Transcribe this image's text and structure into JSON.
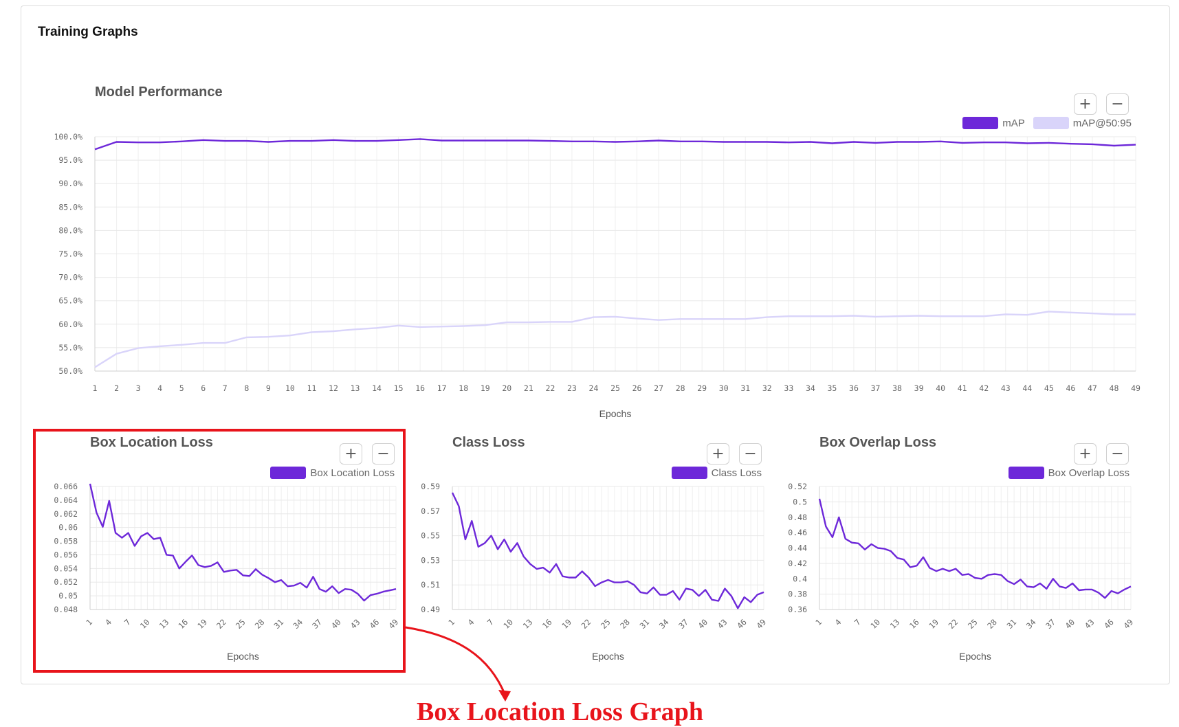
{
  "card": {
    "title": "Training Graphs"
  },
  "zoom": {
    "in_label": "+",
    "out_label": "−"
  },
  "annotation": {
    "label": "Box Location Loss Graph",
    "color": "#e8141b"
  },
  "colors": {
    "primary": "#6d28d9",
    "secondary": "#d9d4fa"
  },
  "chart_data": [
    {
      "id": "perf",
      "type": "line",
      "title": "Model Performance",
      "xlabel": "Epochs",
      "ylabel": "",
      "x": [
        1,
        2,
        3,
        4,
        5,
        6,
        7,
        8,
        9,
        10,
        11,
        12,
        13,
        14,
        15,
        16,
        17,
        18,
        19,
        20,
        21,
        22,
        23,
        24,
        25,
        26,
        27,
        28,
        29,
        30,
        31,
        32,
        33,
        34,
        35,
        36,
        37,
        38,
        39,
        40,
        41,
        42,
        43,
        44,
        45,
        46,
        47,
        48,
        49
      ],
      "ylim": [
        50,
        100
      ],
      "yticks": [
        "100.0%",
        "95.0%",
        "90.0%",
        "85.0%",
        "80.0%",
        "75.0%",
        "70.0%",
        "65.0%",
        "60.0%",
        "55.0%",
        "50.0%"
      ],
      "legend": "top-right",
      "grid": true,
      "series": [
        {
          "name": "mAP",
          "color": "#6d28d9",
          "values": [
            97.3,
            98.9,
            98.8,
            98.8,
            99.0,
            99.3,
            99.1,
            99.1,
            98.9,
            99.1,
            99.1,
            99.3,
            99.1,
            99.1,
            99.3,
            99.5,
            99.2,
            99.2,
            99.2,
            99.2,
            99.2,
            99.1,
            99.0,
            99.0,
            98.9,
            99.0,
            99.2,
            99.0,
            99.0,
            98.9,
            98.9,
            98.9,
            98.8,
            98.9,
            98.6,
            98.9,
            98.7,
            98.9,
            98.9,
            99.0,
            98.7,
            98.8,
            98.8,
            98.6,
            98.7,
            98.5,
            98.4,
            98.1,
            98.3
          ]
        },
        {
          "name": "mAP@50:95",
          "color": "#d9d4fa",
          "values": [
            50.8,
            53.7,
            54.9,
            55.3,
            55.6,
            56.0,
            56.0,
            57.2,
            57.3,
            57.6,
            58.3,
            58.5,
            58.9,
            59.2,
            59.7,
            59.4,
            59.5,
            59.6,
            59.8,
            60.4,
            60.4,
            60.5,
            60.5,
            61.5,
            61.6,
            61.2,
            60.9,
            61.1,
            61.1,
            61.1,
            61.1,
            61.5,
            61.7,
            61.7,
            61.7,
            61.8,
            61.6,
            61.7,
            61.8,
            61.7,
            61.7,
            61.7,
            62.1,
            62.0,
            62.7,
            62.5,
            62.3,
            62.1,
            62.1
          ]
        }
      ]
    },
    {
      "id": "boxloc",
      "type": "line",
      "title": "Box Location Loss",
      "xlabel": "Epochs",
      "ylabel": "",
      "x": [
        1,
        2,
        3,
        4,
        5,
        6,
        7,
        8,
        9,
        10,
        11,
        12,
        13,
        14,
        15,
        16,
        17,
        18,
        19,
        20,
        21,
        22,
        23,
        24,
        25,
        26,
        27,
        28,
        29,
        30,
        31,
        32,
        33,
        34,
        35,
        36,
        37,
        38,
        39,
        40,
        41,
        42,
        43,
        44,
        45,
        46,
        47,
        48,
        49
      ],
      "xticks": [
        1,
        4,
        7,
        10,
        13,
        16,
        19,
        22,
        25,
        28,
        31,
        34,
        37,
        40,
        43,
        46,
        49
      ],
      "ylim": [
        0.048,
        0.066
      ],
      "yticks": [
        "0.066",
        "0.064",
        "0.062",
        "0.06",
        "0.058",
        "0.056",
        "0.054",
        "0.052",
        "0.05",
        "0.048"
      ],
      "legend": "top-right",
      "grid": true,
      "series": [
        {
          "name": "Box Location Loss",
          "color": "#6d28d9",
          "values": [
            0.0664,
            0.0622,
            0.0601,
            0.0639,
            0.0592,
            0.0585,
            0.0592,
            0.0573,
            0.0587,
            0.0592,
            0.0583,
            0.0585,
            0.056,
            0.0559,
            0.054,
            0.055,
            0.0559,
            0.0545,
            0.0542,
            0.0544,
            0.0549,
            0.0535,
            0.0537,
            0.0538,
            0.053,
            0.0529,
            0.0539,
            0.0531,
            0.0526,
            0.052,
            0.0523,
            0.0514,
            0.0515,
            0.0519,
            0.0512,
            0.0528,
            0.051,
            0.0506,
            0.0514,
            0.0504,
            0.051,
            0.0509,
            0.0503,
            0.0493,
            0.0501,
            0.0503,
            0.0506,
            0.0508,
            0.051
          ]
        }
      ]
    },
    {
      "id": "class",
      "type": "line",
      "title": "Class Loss",
      "xlabel": "Epochs",
      "ylabel": "",
      "x": [
        1,
        2,
        3,
        4,
        5,
        6,
        7,
        8,
        9,
        10,
        11,
        12,
        13,
        14,
        15,
        16,
        17,
        18,
        19,
        20,
        21,
        22,
        23,
        24,
        25,
        26,
        27,
        28,
        29,
        30,
        31,
        32,
        33,
        34,
        35,
        36,
        37,
        38,
        39,
        40,
        41,
        42,
        43,
        44,
        45,
        46,
        47,
        48,
        49
      ],
      "xticks": [
        1,
        4,
        7,
        10,
        13,
        16,
        19,
        22,
        25,
        28,
        31,
        34,
        37,
        40,
        43,
        46,
        49
      ],
      "ylim": [
        0.49,
        0.59
      ],
      "yticks": [
        "0.59",
        "0.57",
        "0.55",
        "0.53",
        "0.51",
        "0.49"
      ],
      "legend": "top-right",
      "grid": true,
      "series": [
        {
          "name": "Class Loss",
          "color": "#6d28d9",
          "values": [
            0.585,
            0.574,
            0.547,
            0.562,
            0.541,
            0.544,
            0.55,
            0.539,
            0.547,
            0.537,
            0.544,
            0.533,
            0.527,
            0.523,
            0.524,
            0.52,
            0.527,
            0.517,
            0.516,
            0.516,
            0.521,
            0.516,
            0.509,
            0.512,
            0.514,
            0.512,
            0.512,
            0.513,
            0.51,
            0.504,
            0.503,
            0.508,
            0.502,
            0.502,
            0.505,
            0.498,
            0.507,
            0.506,
            0.501,
            0.506,
            0.498,
            0.497,
            0.507,
            0.501,
            0.491,
            0.5,
            0.496,
            0.502,
            0.504
          ]
        }
      ]
    },
    {
      "id": "overlap",
      "type": "line",
      "title": "Box Overlap Loss",
      "xlabel": "Epochs",
      "ylabel": "",
      "x": [
        1,
        2,
        3,
        4,
        5,
        6,
        7,
        8,
        9,
        10,
        11,
        12,
        13,
        14,
        15,
        16,
        17,
        18,
        19,
        20,
        21,
        22,
        23,
        24,
        25,
        26,
        27,
        28,
        29,
        30,
        31,
        32,
        33,
        34,
        35,
        36,
        37,
        38,
        39,
        40,
        41,
        42,
        43,
        44,
        45,
        46,
        47,
        48,
        49
      ],
      "xticks": [
        1,
        4,
        7,
        10,
        13,
        16,
        19,
        22,
        25,
        28,
        31,
        34,
        37,
        40,
        43,
        46,
        49
      ],
      "ylim": [
        0.36,
        0.52
      ],
      "yticks": [
        "0.52",
        "0.5",
        "0.48",
        "0.46",
        "0.44",
        "0.42",
        "0.4",
        "0.38",
        "0.36"
      ],
      "legend": "top-right",
      "grid": true,
      "series": [
        {
          "name": "Box Overlap Loss",
          "color": "#6d28d9",
          "values": [
            0.504,
            0.468,
            0.454,
            0.48,
            0.452,
            0.447,
            0.446,
            0.438,
            0.445,
            0.44,
            0.439,
            0.436,
            0.427,
            0.425,
            0.415,
            0.417,
            0.428,
            0.414,
            0.41,
            0.413,
            0.41,
            0.413,
            0.405,
            0.406,
            0.401,
            0.4,
            0.405,
            0.406,
            0.405,
            0.397,
            0.393,
            0.399,
            0.39,
            0.389,
            0.394,
            0.387,
            0.4,
            0.39,
            0.388,
            0.394,
            0.385,
            0.386,
            0.386,
            0.382,
            0.375,
            0.384,
            0.381,
            0.386,
            0.39
          ]
        }
      ]
    }
  ]
}
